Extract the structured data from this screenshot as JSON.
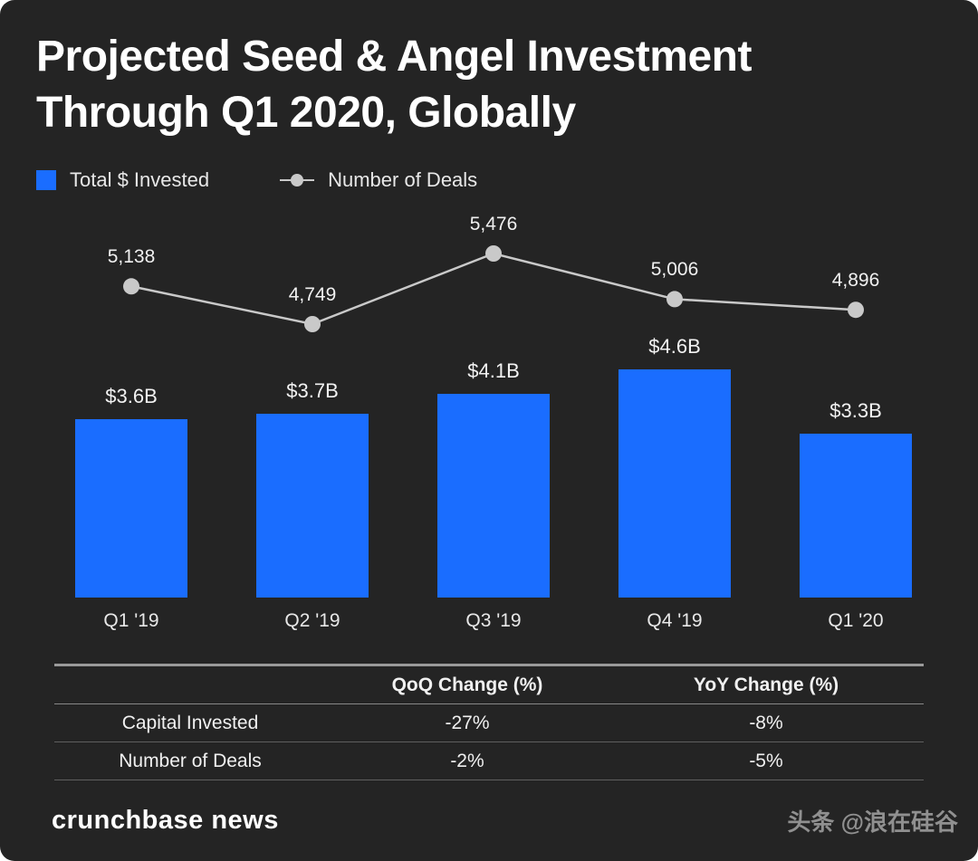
{
  "page": {
    "title": "Projected Seed & Angel Investment\nThrough Q1 2020, Globally",
    "footer_brand": "crunchbase news",
    "watermark": "头条 @浪在硅谷"
  },
  "legend": {
    "bars_label": "Total $ Invested",
    "line_label": "Number of Deals"
  },
  "colors": {
    "background": "#242424",
    "bar": "#1a6dff",
    "line": "#c9c9c9",
    "text": "#f0f0f0"
  },
  "chart_data": [
    {
      "type": "bar",
      "title": "Projected Seed & Angel Investment Through Q1 2020, Globally",
      "categories": [
        "Q1 '19",
        "Q2 '19",
        "Q3 '19",
        "Q4 '19",
        "Q1 '20"
      ],
      "series": [
        {
          "name": "Total $ Invested",
          "render_as": "bar",
          "values": [
            3.6,
            3.7,
            4.1,
            4.6,
            3.3
          ],
          "labels": [
            "$3.6B",
            "$3.7B",
            "$4.1B",
            "$4.6B",
            "$3.3B"
          ]
        },
        {
          "name": "Number of Deals",
          "render_as": "line",
          "values": [
            5138,
            4749,
            5476,
            5006,
            4896
          ],
          "labels": [
            "5,138",
            "4,749",
            "5,476",
            "5,006",
            "4,896"
          ]
        }
      ],
      "legend_position": "top-left",
      "grid": false
    },
    {
      "type": "table",
      "headers": [
        "QoQ Change (%)",
        "YoY Change (%)"
      ],
      "rows": [
        [
          "Capital Invested",
          "-27%",
          "-8%"
        ],
        [
          "Number of Deals",
          "-2%",
          "-5%"
        ]
      ]
    }
  ]
}
